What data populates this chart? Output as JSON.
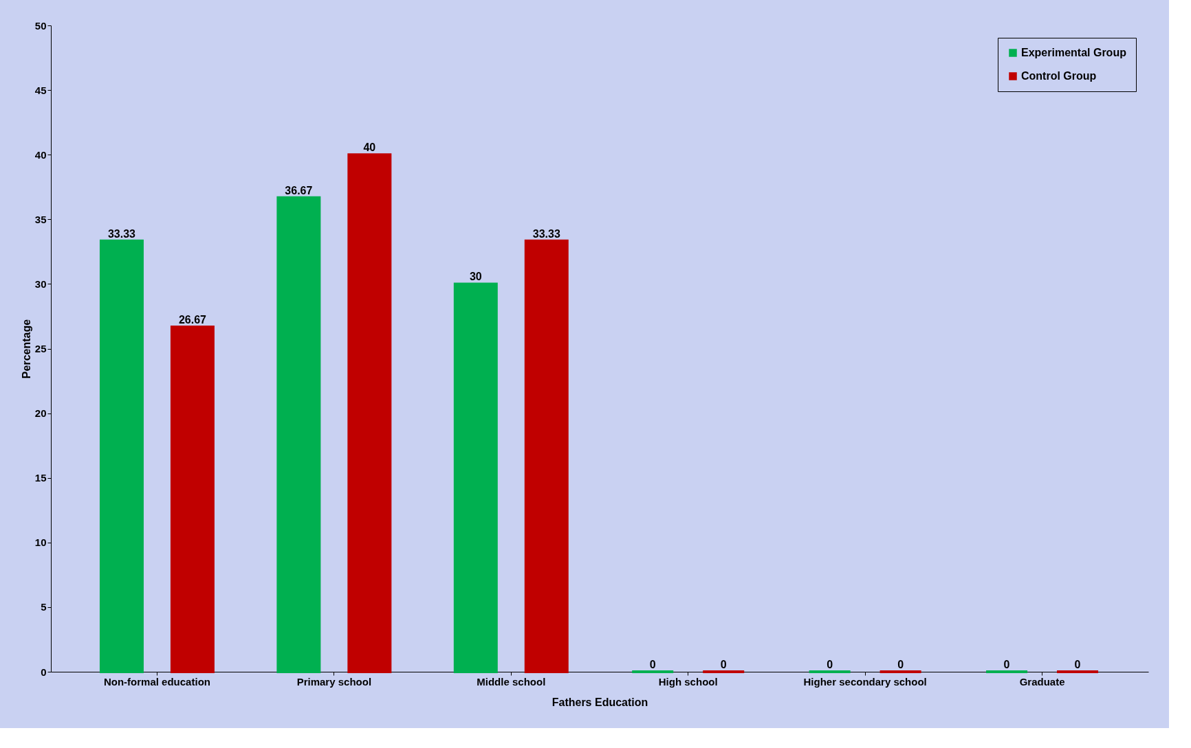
{
  "chart_data": {
    "type": "bar",
    "xlabel": "Fathers Education",
    "ylabel": "Percentage",
    "categories": [
      "Non-formal education",
      "Primary school",
      "Middle school",
      "High school",
      "Higher secondary school",
      "Graduate"
    ],
    "series": [
      {
        "name": "Experimental Group",
        "color": "#00b050",
        "values": [
          33.33,
          36.67,
          30,
          0,
          0,
          0
        ]
      },
      {
        "name": "Control Group",
        "color": "#c00000",
        "values": [
          26.67,
          40,
          33.33,
          0,
          0,
          0
        ]
      }
    ],
    "ylim": [
      0,
      50
    ],
    "yticks": [
      0,
      5,
      10,
      15,
      20,
      25,
      30,
      35,
      40,
      45,
      50
    ],
    "grid": false,
    "legend": "top right",
    "data_labels": true
  }
}
